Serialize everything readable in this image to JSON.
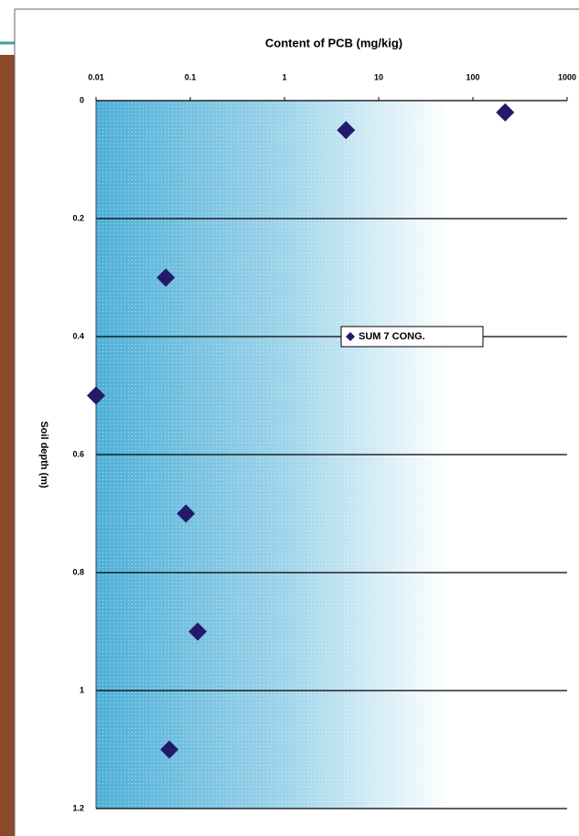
{
  "chart_data": {
    "type": "scatter",
    "title": "Content of PCB (mg/kig)",
    "y_label": "Soil depth (m)",
    "x_scale": "log",
    "y_inverted": true,
    "xlim": [
      0.01,
      1000
    ],
    "xticks": [
      0.01,
      0.1,
      1,
      10,
      100,
      1000
    ],
    "ylim": [
      0,
      1.2
    ],
    "yticks": [
      0,
      0.2,
      0.4,
      0.6,
      0.8,
      1,
      1.2
    ],
    "grid": true,
    "legend_position": "center",
    "series": [
      {
        "name": "SUM 7 CONG.",
        "color": "#231a6b",
        "x": [
          220,
          4.5,
          0.055,
          0.01,
          0.09,
          0.12,
          0.06
        ],
        "values": [
          0.02,
          0.05,
          0.3,
          0.5,
          0.7,
          0.9,
          1.1
        ]
      }
    ]
  }
}
